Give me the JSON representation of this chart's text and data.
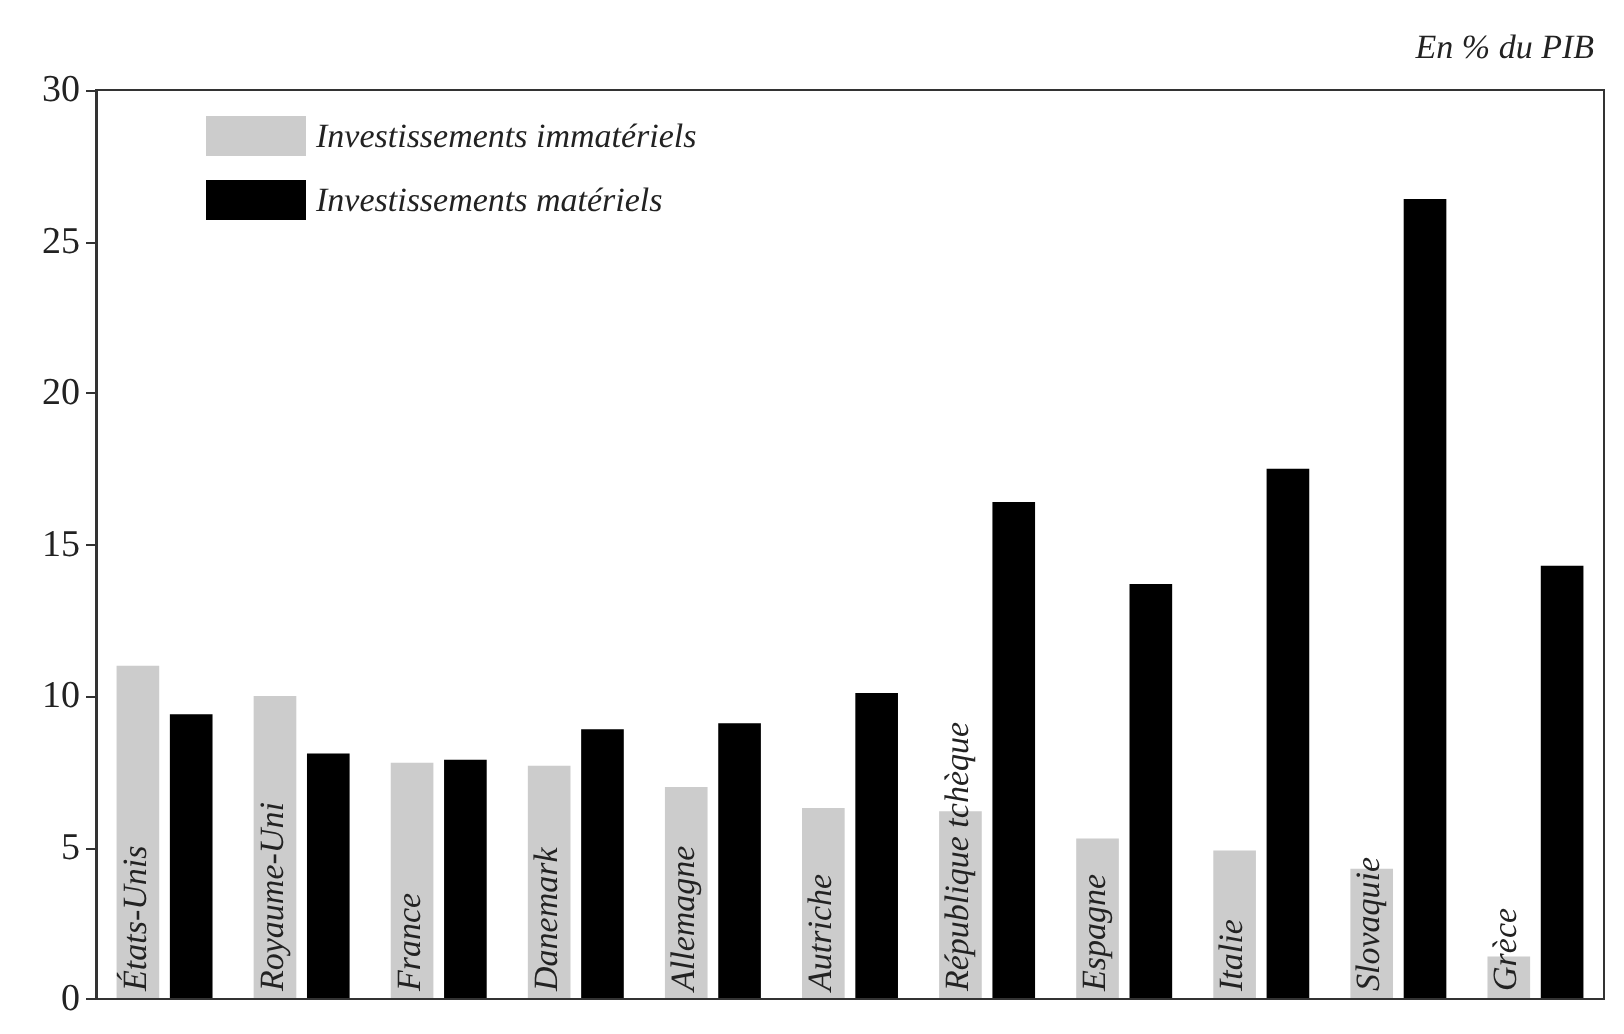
{
  "chart_data": {
    "type": "bar",
    "ylabel": "En % du PIB",
    "categories": [
      "États-Unis",
      "Royaume-Uni",
      "France",
      "Danemark",
      "Allemagne",
      "Autriche",
      "République tchèque",
      "Espagne",
      "Italie",
      "Slovaquie",
      "Grèce"
    ],
    "series": [
      {
        "name": "Investissements immatériels",
        "color": "#cccccc",
        "values": [
          11.0,
          10.0,
          7.8,
          7.7,
          7.0,
          6.3,
          6.2,
          5.3,
          4.9,
          4.3,
          1.4
        ]
      },
      {
        "name": "Investissements matériels",
        "color": "#000000",
        "values": [
          9.4,
          8.1,
          7.9,
          8.9,
          9.1,
          10.1,
          16.4,
          13.7,
          17.5,
          26.4,
          14.3
        ]
      }
    ],
    "ylim": [
      0,
      30
    ],
    "yticks": [
      0,
      5,
      10,
      15,
      20,
      25,
      30
    ],
    "grid": false,
    "legend": "top left"
  }
}
